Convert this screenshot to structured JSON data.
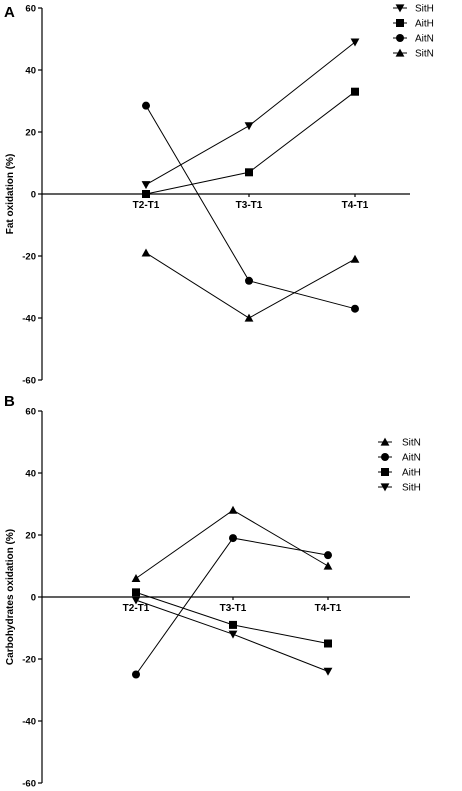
{
  "chart_data": [
    {
      "type": "line",
      "panel_label": "A",
      "ylabel": "Fat oxidation (%)",
      "categories": [
        "T2-T1",
        "T3-T1",
        "T4-T1"
      ],
      "ylim": [
        -60,
        60
      ],
      "yticks": [
        -60,
        -40,
        -20,
        0,
        20,
        40,
        60
      ],
      "grid": false,
      "legend_position": "top-right",
      "series": [
        {
          "name": "SitH",
          "marker": "triangle-down",
          "values": [
            3,
            22,
            49
          ]
        },
        {
          "name": "AitH",
          "marker": "square",
          "values": [
            0,
            7,
            33
          ]
        },
        {
          "name": "AitN",
          "marker": "circle",
          "values": [
            28.5,
            -28,
            -37
          ]
        },
        {
          "name": "SitN",
          "marker": "triangle-up",
          "values": [
            -19,
            -40,
            -21
          ]
        }
      ]
    },
    {
      "type": "line",
      "panel_label": "B",
      "ylabel": "Carbohydrates oxidation (%)",
      "categories": [
        "T2-T1",
        "T3-T1",
        "T4-T1"
      ],
      "ylim": [
        -60,
        60
      ],
      "yticks": [
        -60,
        -40,
        -20,
        0,
        20,
        40,
        60
      ],
      "grid": false,
      "legend_position": "top-right",
      "series": [
        {
          "name": "SitN",
          "marker": "triangle-up",
          "values": [
            6,
            28,
            10
          ]
        },
        {
          "name": "AitN",
          "marker": "circle",
          "values": [
            -25,
            19,
            13.5
          ]
        },
        {
          "name": "AitH",
          "marker": "square",
          "values": [
            1.5,
            -9,
            -15
          ]
        },
        {
          "name": "SitH",
          "marker": "triangle-down",
          "values": [
            -1,
            -12,
            -24
          ]
        }
      ]
    }
  ]
}
